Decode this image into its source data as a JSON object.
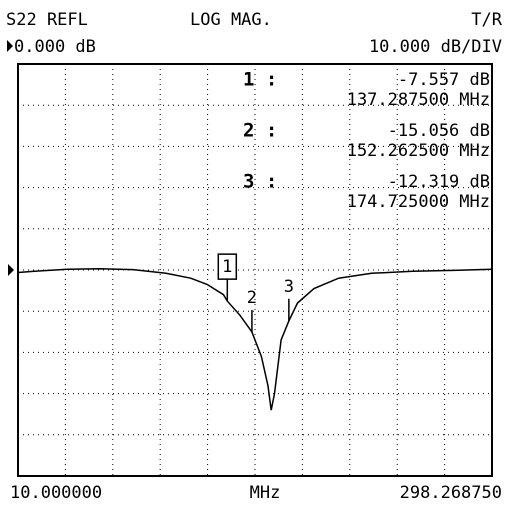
{
  "chart_data": {
    "type": "line",
    "header": {
      "channel": "S22 REFL",
      "format": "LOG MAG.",
      "mode": "T/R",
      "reference": "0.000 dB",
      "scale": "10.000 dB/DIV"
    },
    "footer": {
      "start": "10.000000",
      "unit": "MHz",
      "stop": "298.268750"
    },
    "color": "#000000",
    "x": [
      10,
      20,
      40,
      60,
      80,
      100,
      115,
      125,
      135,
      137.2875,
      145,
      152.2625,
      158,
      162,
      164,
      166,
      170,
      174.725,
      180,
      190,
      205,
      225,
      250,
      275,
      298.26875
    ],
    "values": [
      -0.6,
      -0.3,
      0.2,
      0.3,
      0.1,
      -0.8,
      -2,
      -3.5,
      -6,
      -7.557,
      -11,
      -15.056,
      -21,
      -28,
      -34,
      -30,
      -17,
      -12.319,
      -8,
      -4.5,
      -2,
      -0.8,
      -0.3,
      -0.1,
      0.2
    ],
    "xlim": [
      10,
      298.26875
    ],
    "ylim": [
      -50,
      50
    ],
    "yticks": [
      -50,
      -40,
      -30,
      -20,
      -10,
      0,
      10,
      20,
      30,
      40,
      50
    ],
    "grid": true,
    "markers": [
      {
        "label": "1",
        "tag": "1 :",
        "x": 137.2875,
        "value": -7.557,
        "value_label": "-7.557 dB",
        "x_label": "137.287500 MHz",
        "active": true
      },
      {
        "label": "2",
        "tag": "2 :",
        "x": 152.2625,
        "value": -15.056,
        "value_label": "-15.056 dB",
        "x_label": "152.262500 MHz",
        "active": false
      },
      {
        "label": "3",
        "tag": "3 :",
        "x": 174.725,
        "value": -12.319,
        "value_label": "-12.319 dB",
        "x_label": "174.725000 MHz",
        "active": false
      }
    ]
  }
}
